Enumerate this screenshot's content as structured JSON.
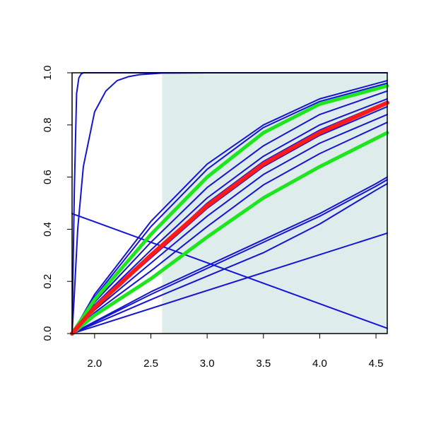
{
  "chart_data": {
    "type": "line",
    "title": "",
    "xlabel": "",
    "ylabel": "",
    "xlim": [
      1.8,
      4.6
    ],
    "ylim": [
      0.0,
      1.0
    ],
    "x_ticks": [
      {
        "value": 2.0,
        "label": "2.0"
      },
      {
        "value": 2.5,
        "label": "2.5"
      },
      {
        "value": 3.0,
        "label": "3.0"
      },
      {
        "value": 3.5,
        "label": "3.5"
      },
      {
        "value": 4.0,
        "label": "4.0"
      },
      {
        "value": 4.5,
        "label": "4.5"
      }
    ],
    "y_ticks": [
      {
        "value": 0.0,
        "label": "0.0"
      },
      {
        "value": 0.2,
        "label": "0.2"
      },
      {
        "value": 0.4,
        "label": "0.4"
      },
      {
        "value": 0.6,
        "label": "0.6"
      },
      {
        "value": 0.8,
        "label": "0.8"
      },
      {
        "value": 1.0,
        "label": "1.0"
      }
    ],
    "shaded_region": {
      "x_start": 2.6,
      "x_end": 4.6,
      "y_start": 0.0,
      "y_end": 1.0,
      "color": "#dfecec"
    },
    "grid": false,
    "legend": "none",
    "colors": {
      "blue": "#1414d4",
      "red": "#ff1a1a",
      "green": "#1ee61e",
      "axis": "#000000"
    },
    "series": [
      {
        "color": "blue",
        "width": 2,
        "x": [
          1.8,
          1.82,
          1.84,
          1.86,
          1.88,
          1.9,
          2.0,
          4.6
        ],
        "y": [
          0.0,
          0.55,
          0.92,
          0.98,
          0.995,
          1.0,
          1.0,
          1.0
        ]
      },
      {
        "color": "blue",
        "width": 2,
        "x": [
          1.8,
          1.82,
          1.85,
          1.9,
          2.0,
          2.1,
          2.2,
          2.3,
          2.4,
          2.6,
          3.0,
          4.6
        ],
        "y": [
          0.0,
          0.15,
          0.4,
          0.64,
          0.85,
          0.93,
          0.97,
          0.985,
          0.993,
          0.999,
          1.0,
          1.0
        ]
      },
      {
        "color": "blue",
        "width": 2,
        "x": [
          1.8,
          4.6
        ],
        "y": [
          0.46,
          0.02
        ]
      },
      {
        "color": "blue",
        "width": 2,
        "x": [
          1.8,
          4.6
        ],
        "y": [
          0.0,
          0.385
        ]
      },
      {
        "color": "blue",
        "width": 2,
        "x": [
          1.8,
          2.5,
          3.0,
          3.5,
          4.0,
          4.5,
          4.6
        ],
        "y": [
          0.0,
          0.13,
          0.22,
          0.31,
          0.42,
          0.55,
          0.575
        ]
      },
      {
        "color": "blue",
        "width": 2,
        "x": [
          1.8,
          2.5,
          3.0,
          3.5,
          4.0,
          4.5,
          4.6
        ],
        "y": [
          0.0,
          0.15,
          0.25,
          0.35,
          0.45,
          0.565,
          0.59
        ]
      },
      {
        "color": "blue",
        "width": 2,
        "x": [
          1.8,
          2.5,
          3.0,
          3.5,
          4.0,
          4.5,
          4.6
        ],
        "y": [
          0.0,
          0.16,
          0.26,
          0.36,
          0.46,
          0.575,
          0.6
        ]
      },
      {
        "color": "blue",
        "width": 2,
        "x": [
          1.8,
          2.0,
          2.5,
          3.0,
          3.5,
          4.0,
          4.6
        ],
        "y": [
          0.0,
          0.08,
          0.24,
          0.41,
          0.57,
          0.69,
          0.81
        ]
      },
      {
        "color": "blue",
        "width": 2,
        "x": [
          1.8,
          2.0,
          2.5,
          3.0,
          3.5,
          4.0,
          4.6
        ],
        "y": [
          0.0,
          0.09,
          0.27,
          0.45,
          0.61,
          0.73,
          0.84
        ]
      },
      {
        "color": "blue",
        "width": 2,
        "x": [
          1.8,
          2.0,
          2.5,
          3.0,
          3.5,
          4.0,
          4.6
        ],
        "y": [
          0.0,
          0.1,
          0.29,
          0.48,
          0.64,
          0.76,
          0.87
        ]
      },
      {
        "color": "blue",
        "width": 2,
        "x": [
          1.8,
          2.0,
          2.5,
          3.0,
          3.5,
          4.0,
          4.6
        ],
        "y": [
          0.0,
          0.11,
          0.32,
          0.52,
          0.68,
          0.8,
          0.9
        ]
      },
      {
        "color": "blue",
        "width": 2,
        "x": [
          1.8,
          2.0,
          2.5,
          3.0,
          3.5,
          4.0,
          4.6
        ],
        "y": [
          0.0,
          0.12,
          0.35,
          0.56,
          0.72,
          0.84,
          0.93
        ]
      },
      {
        "color": "blue",
        "width": 2,
        "x": [
          1.8,
          2.0,
          2.5,
          3.0,
          3.5,
          4.0,
          4.6
        ],
        "y": [
          0.0,
          0.14,
          0.41,
          0.63,
          0.79,
          0.89,
          0.96
        ]
      },
      {
        "color": "blue",
        "width": 2,
        "x": [
          1.8,
          2.0,
          2.5,
          3.0,
          3.5,
          4.0,
          4.6
        ],
        "y": [
          0.0,
          0.15,
          0.43,
          0.65,
          0.8,
          0.9,
          0.97
        ]
      },
      {
        "color": "blue",
        "width": 2,
        "x": [
          1.8,
          2.0,
          2.5,
          3.0,
          3.5,
          4.0,
          4.6
        ],
        "y": [
          0.0,
          0.1,
          0.3,
          0.5,
          0.66,
          0.78,
          0.89
        ]
      },
      {
        "color": "green",
        "width": 5,
        "x": [
          1.8,
          2.0,
          2.5,
          3.0,
          3.5,
          4.0,
          4.6
        ],
        "y": [
          0.0,
          0.07,
          0.21,
          0.37,
          0.52,
          0.64,
          0.77
        ]
      },
      {
        "color": "green",
        "width": 5,
        "x": [
          1.8,
          2.0,
          2.5,
          3.0,
          3.5,
          4.0,
          4.6
        ],
        "y": [
          0.0,
          0.13,
          0.38,
          0.6,
          0.77,
          0.88,
          0.95
        ]
      },
      {
        "color": "red",
        "width": 6,
        "x": [
          1.8,
          2.0,
          2.5,
          3.0,
          3.5,
          4.0,
          4.6
        ],
        "y": [
          0.0,
          0.1,
          0.3,
          0.49,
          0.65,
          0.77,
          0.885
        ]
      }
    ]
  }
}
